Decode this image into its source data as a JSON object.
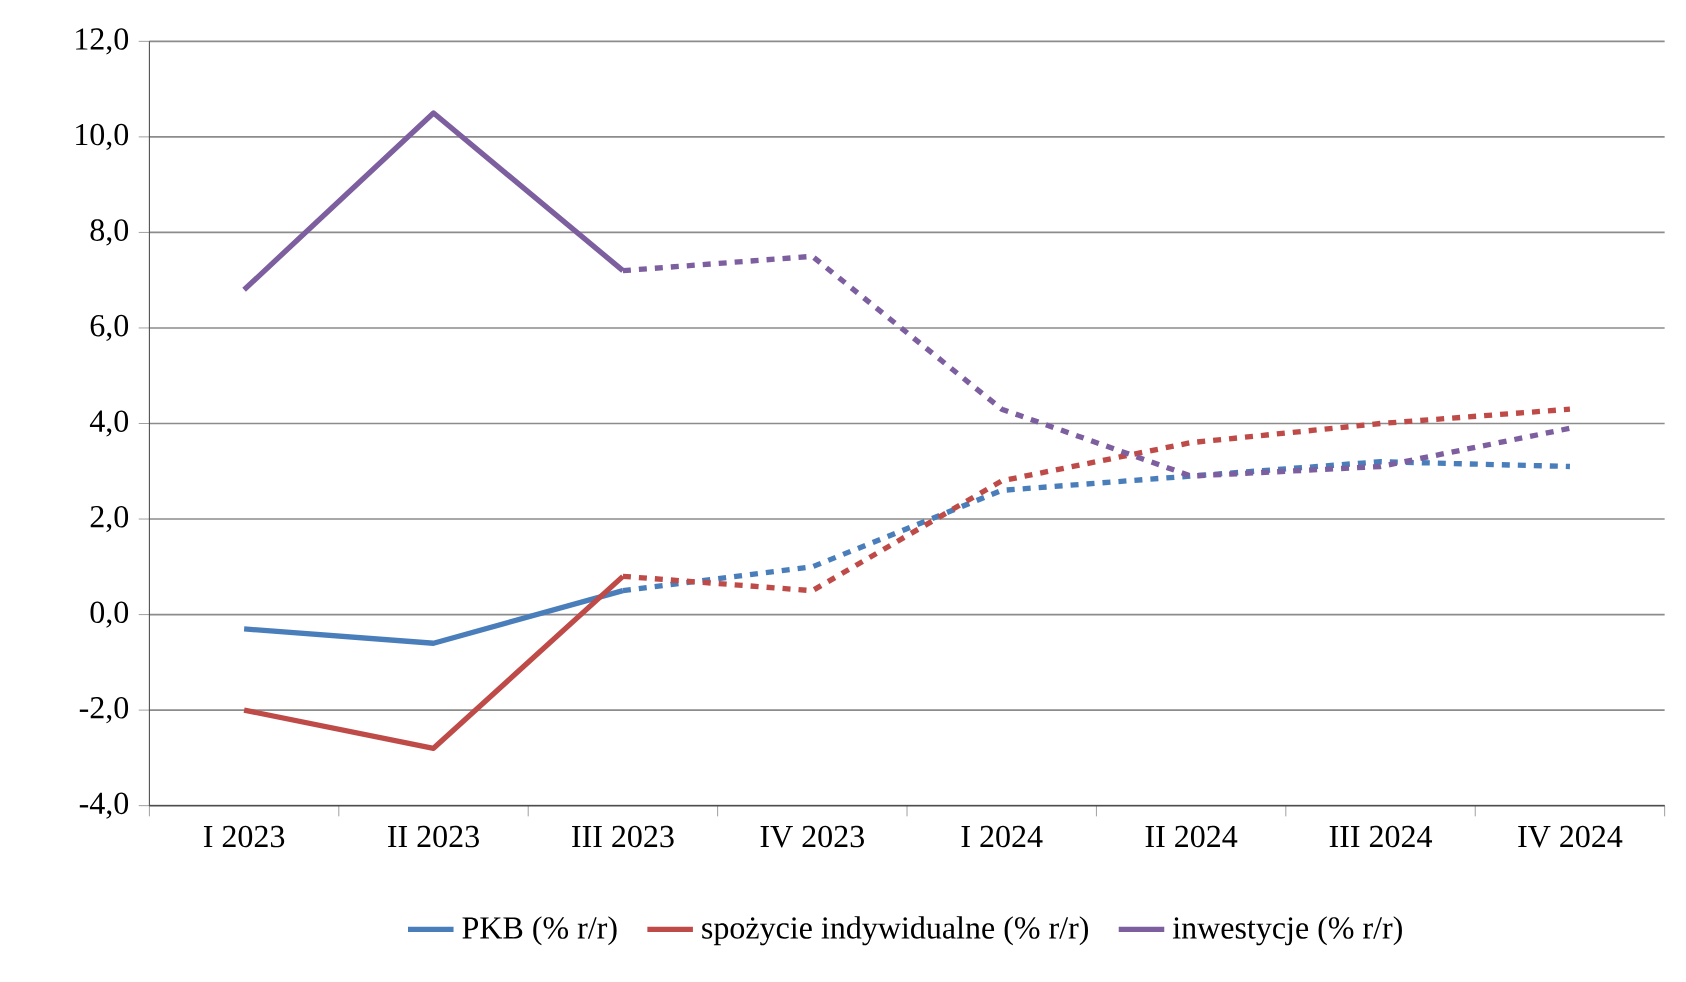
{
  "chart_data": {
    "type": "line",
    "categories": [
      "I 2023",
      "II 2023",
      "III 2023",
      "IV 2023",
      "I 2024",
      "II 2024",
      "III 2024",
      "IV 2024"
    ],
    "ylim": [
      -4,
      12
    ],
    "yticks": [
      {
        "value": -4,
        "label": "-4,0"
      },
      {
        "value": -2,
        "label": "-2,0"
      },
      {
        "value": 0,
        "label": "0,0"
      },
      {
        "value": 2,
        "label": "2,0"
      },
      {
        "value": 4,
        "label": "4,0"
      },
      {
        "value": 6,
        "label": "6,0"
      },
      {
        "value": 8,
        "label": "8,0"
      },
      {
        "value": 10,
        "label": "10,0"
      },
      {
        "value": 12,
        "label": "12,0"
      }
    ],
    "grid": "y",
    "legend": "bottom",
    "marker": "none",
    "series": [
      {
        "name": "PKB (% r/r)",
        "color": "#4a7ebb",
        "line_style": "solid",
        "values": [
          -0.3,
          -0.6,
          0.5,
          null,
          null,
          null,
          null,
          null
        ]
      },
      {
        "name": "spożycie indywidualne (% r/r)",
        "color": "#be4b48",
        "line_style": "solid",
        "values": [
          -2.0,
          -2.8,
          0.8,
          null,
          null,
          null,
          null,
          null
        ]
      },
      {
        "name": "inwestycje (% r/r)",
        "color": "#7d5fa0",
        "line_style": "solid",
        "values": [
          6.8,
          10.5,
          7.2,
          null,
          null,
          null,
          null,
          null
        ]
      },
      {
        "color": "#4a7ebb",
        "line_style": "dashed",
        "values": [
          null,
          null,
          0.5,
          1.0,
          2.6,
          2.9,
          3.2,
          3.1
        ]
      },
      {
        "color": "#be4b48",
        "line_style": "dashed",
        "values": [
          null,
          null,
          0.8,
          0.5,
          2.8,
          3.6,
          4.0,
          4.3
        ]
      },
      {
        "color": "#7d5fa0",
        "line_style": "dashed",
        "values": [
          null,
          null,
          7.2,
          7.5,
          4.3,
          2.9,
          3.1,
          3.9
        ]
      }
    ]
  }
}
